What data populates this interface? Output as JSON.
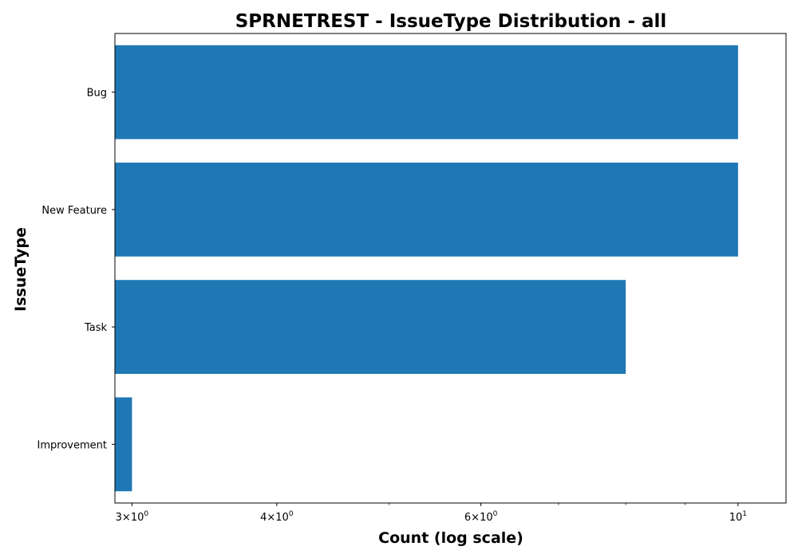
{
  "chart_data": {
    "type": "bar",
    "orientation": "horizontal",
    "title": "SPRNETREST - IssueType Distribution - all",
    "xlabel": "Count (log scale)",
    "ylabel": "IssueType",
    "x_scale": "log",
    "xlim": [
      2.9,
      11.0
    ],
    "categories": [
      "Bug",
      "New Feature",
      "Task",
      "Improvement"
    ],
    "values": [
      10,
      10,
      8,
      3
    ],
    "x_major_ticks": [
      {
        "value": 3,
        "base": "3×10",
        "exp": "0"
      },
      {
        "value": 4,
        "base": "4×10",
        "exp": "0"
      },
      {
        "value": 6,
        "base": "6×10",
        "exp": "0"
      },
      {
        "value": 10,
        "base": "10",
        "exp": "1"
      }
    ],
    "x_minor_ticks": [
      5,
      7,
      8,
      9
    ],
    "bar_color": "#1f77b4",
    "grid": false,
    "legend": "none"
  }
}
